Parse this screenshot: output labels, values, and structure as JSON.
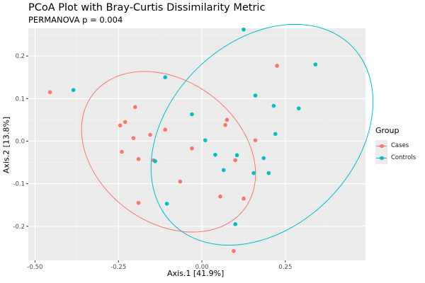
{
  "chart_data": {
    "type": "scatter",
    "title": "PCoA Plot with Bray-Curtis Dissimilarity Metric",
    "subtitle": "PERMANOVA p = 0.004",
    "xlabel": "Axis.1  [41.9%]",
    "ylabel": "Axis.2  [13.8%]",
    "xlim": [
      -0.52,
      0.49
    ],
    "ylim": [
      -0.28,
      0.265
    ],
    "x_ticks": [
      -0.5,
      -0.25,
      0.0,
      0.25
    ],
    "x_tick_labels": [
      "-0.50",
      "-0.25",
      "0.00",
      "0.25"
    ],
    "y_ticks": [
      -0.2,
      -0.1,
      0.0,
      0.1,
      0.2
    ],
    "y_tick_labels": [
      "-0.2",
      "-0.1",
      "0.0",
      "0.1",
      "0.2"
    ],
    "grid": true,
    "legend_title": "Group",
    "legend_position": "right",
    "series": [
      {
        "name": "Cases",
        "color": "#F8766D",
        "points": [
          [
            -0.455,
            0.115
          ],
          [
            -0.2,
            0.08
          ],
          [
            -0.245,
            0.037
          ],
          [
            -0.23,
            0.045
          ],
          [
            -0.24,
            -0.025
          ],
          [
            -0.205,
            0.007
          ],
          [
            -0.155,
            0.015
          ],
          [
            -0.11,
            0.027
          ],
          [
            -0.19,
            -0.042
          ],
          [
            -0.145,
            -0.045
          ],
          [
            -0.03,
            -0.017
          ],
          [
            -0.065,
            -0.095
          ],
          [
            -0.19,
            -0.145
          ],
          [
            0.075,
            0.05
          ],
          [
            0.07,
            0.038
          ],
          [
            0.1,
            -0.045
          ],
          [
            0.16,
            0.002
          ],
          [
            0.055,
            -0.13
          ],
          [
            0.125,
            -0.135
          ],
          [
            0.095,
            -0.258
          ],
          [
            0.225,
            0.177
          ]
        ],
        "ellipse": {
          "center": [
            -0.1,
            -0.025
          ],
          "semi_axes": [
            0.27,
            0.175
          ],
          "rotation_deg": -20
        }
      },
      {
        "name": "Controls",
        "color": "#00BFC4",
        "points": [
          [
            -0.385,
            0.12
          ],
          [
            -0.11,
            0.15
          ],
          [
            -0.14,
            -0.047
          ],
          [
            -0.03,
            0.063
          ],
          [
            0.01,
            0.002
          ],
          [
            0.04,
            -0.032
          ],
          [
            0.065,
            -0.068
          ],
          [
            0.105,
            -0.033
          ],
          [
            0.155,
            -0.075
          ],
          [
            0.185,
            -0.04
          ],
          [
            0.2,
            -0.075
          ],
          [
            0.16,
            0.107
          ],
          [
            0.215,
            0.083
          ],
          [
            0.22,
            0.017
          ],
          [
            0.29,
            0.077
          ],
          [
            0.34,
            0.18
          ],
          [
            0.125,
            0.262
          ],
          [
            -0.105,
            -0.147
          ],
          [
            0.1,
            -0.195
          ]
        ],
        "ellipse": {
          "center": [
            0.18,
            0.015
          ],
          "semi_axes": [
            0.35,
            0.235
          ],
          "rotation_deg": 25
        }
      }
    ]
  }
}
